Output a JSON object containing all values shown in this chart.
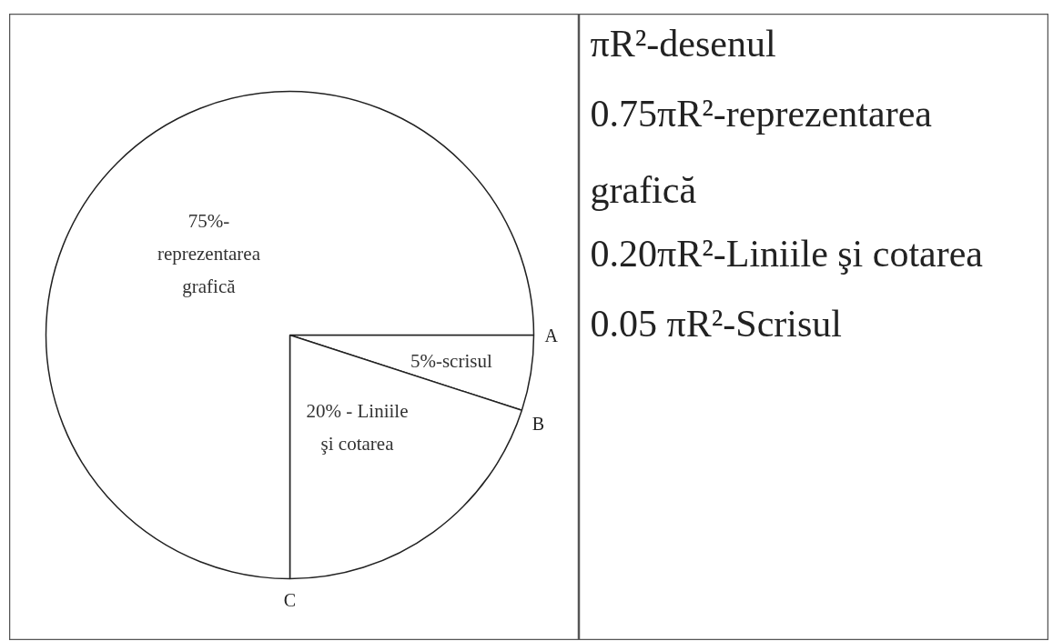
{
  "chart_data": [
    {
      "type": "pie",
      "categories": [
        "5%-scrisul",
        "20% - Liniile şi cotarea",
        "75%-reprezentarea grafică"
      ],
      "values": [
        5,
        20,
        75
      ],
      "colors": [
        "#ffffff",
        "#ffffff",
        "#ffffff"
      ],
      "annotations": [
        "A",
        "B",
        "C"
      ]
    },
    {
      "type": "other",
      "annotations": [
        "πR²-desenul",
        "0.75πR²-reprezentarea grafică",
        "0.20πR²-Liniile şi cotarea",
        "0.05 πR²-Scrisul"
      ]
    }
  ]
}
